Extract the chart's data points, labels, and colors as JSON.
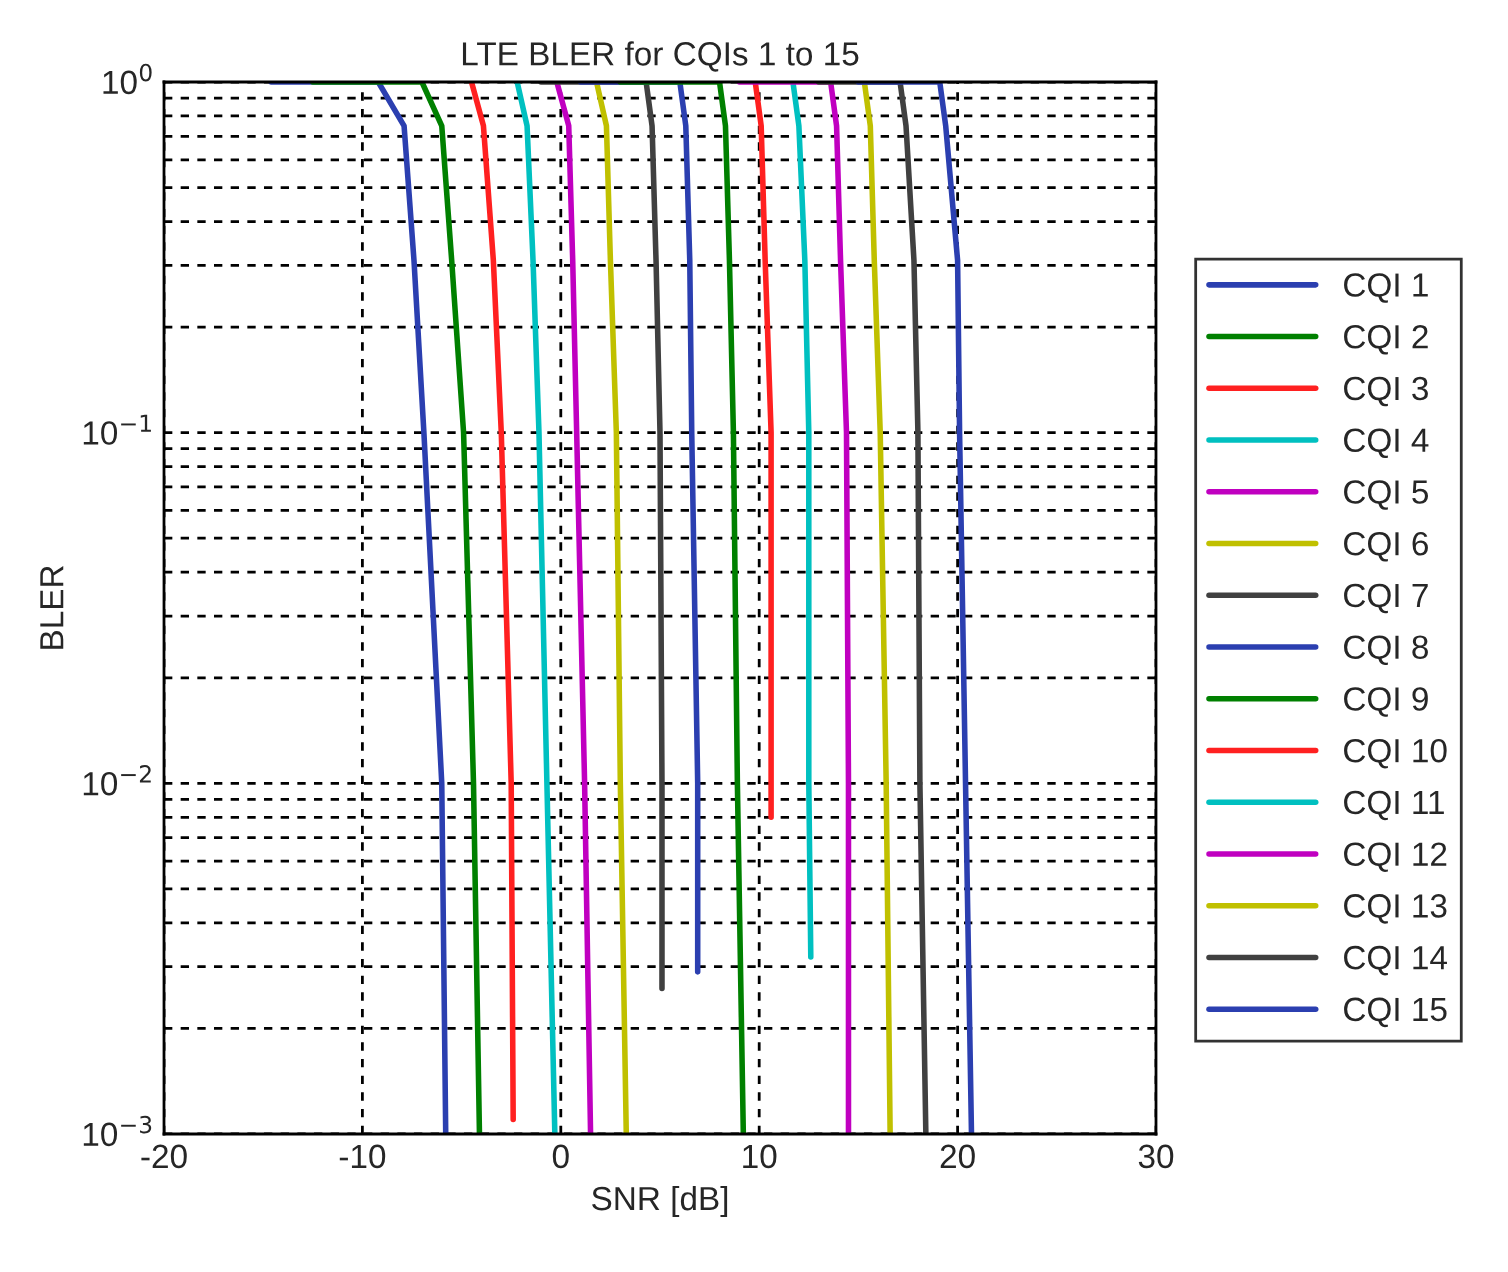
{
  "chart_data": {
    "type": "line",
    "title": "LTE BLER for CQIs 1 to 15",
    "xlabel": "SNR [dB]",
    "ylabel": "BLER",
    "log": "y",
    "xlim": [
      -20,
      30
    ],
    "xticks": [
      -20,
      -10,
      0,
      10,
      20,
      30
    ],
    "ylim": [
      0.001,
      1
    ],
    "yticks": [
      {
        "value": 0.001,
        "label": "10$^{−3}$"
      },
      {
        "value": 0.01,
        "label": "10$^{−2}$"
      },
      {
        "value": 0.1,
        "label": "10$^{−1}$"
      },
      {
        "value": 1,
        "label": "10$^{0}$"
      }
    ],
    "grid": true,
    "legend": "right",
    "marker": "none",
    "line_style": "solid",
    "series": [
      {
        "name": "CQI 1",
        "color": "#2b3fb0",
        "x": [
          -14.6,
          -9.2,
          -7.9,
          -7.4,
          -6.9,
          -6.0,
          -5.8
        ],
        "values": [
          1,
          1,
          0.75,
          0.31,
          0.1,
          0.01,
          0.001
        ]
      },
      {
        "name": "CQI 2",
        "color": "#008000",
        "x": [
          -12.5,
          -7.0,
          -6.0,
          -5.5,
          -4.9,
          -4.4,
          -4.1
        ],
        "values": [
          1,
          1,
          0.75,
          0.31,
          0.1,
          0.01,
          0.001
        ]
      },
      {
        "name": "CQI 3",
        "color": "#ff2020",
        "x": [
          -4.5,
          -3.9,
          -3.4,
          -3.0,
          -2.5,
          -2.4
        ],
        "values": [
          1,
          0.75,
          0.31,
          0.1,
          0.01,
          0.0011
        ]
      },
      {
        "name": "CQI 4",
        "color": "#00c0c0",
        "x": [
          -2.2,
          -1.7,
          -1.4,
          -1.1,
          -0.7,
          -0.3
        ],
        "values": [
          1,
          0.75,
          0.31,
          0.1,
          0.01,
          0.001
        ]
      },
      {
        "name": "CQI 5",
        "color": "#c000c0",
        "x": [
          -0.2,
          0.4,
          0.6,
          0.8,
          1.2,
          1.5
        ],
        "values": [
          1,
          0.75,
          0.31,
          0.1,
          0.01,
          0.001
        ]
      },
      {
        "name": "CQI 6",
        "color": "#c0c000",
        "x": [
          1.8,
          2.3,
          2.5,
          2.8,
          3.0,
          3.3
        ],
        "values": [
          1,
          0.75,
          0.31,
          0.1,
          0.01,
          0.001
        ]
      },
      {
        "name": "CQI 7",
        "color": "#404040",
        "x": [
          -1,
          4.3,
          4.6,
          4.8,
          5.0,
          5.1,
          5.1
        ],
        "values": [
          1,
          1,
          0.75,
          0.31,
          0.1,
          0.01,
          0.0026
        ]
      },
      {
        "name": "CQI 8",
        "color": "#2b3fb0",
        "x": [
          1,
          6.0,
          6.3,
          6.5,
          6.6,
          6.9,
          6.9
        ],
        "values": [
          1,
          1,
          0.75,
          0.31,
          0.1,
          0.01,
          0.0029
        ]
      },
      {
        "name": "CQI 9",
        "color": "#008000",
        "x": [
          3,
          8.0,
          8.3,
          8.5,
          8.7,
          8.9,
          9.2
        ],
        "values": [
          1,
          1,
          0.75,
          0.31,
          0.1,
          0.01,
          0.001
        ]
      },
      {
        "name": "CQI 10",
        "color": "#ff2020",
        "x": [
          9.8,
          10.1,
          10.3,
          10.6,
          10.6
        ],
        "values": [
          1,
          0.75,
          0.31,
          0.1,
          0.008
        ]
      },
      {
        "name": "CQI 11",
        "color": "#00c0c0",
        "x": [
          11.7,
          12.0,
          12.3,
          12.5,
          12.5,
          12.6
        ],
        "values": [
          1,
          0.75,
          0.31,
          0.1,
          0.01,
          0.0032
        ]
      },
      {
        "name": "CQI 12",
        "color": "#c000c0",
        "x": [
          9,
          13.6,
          13.9,
          14.1,
          14.4,
          14.5,
          14.5
        ],
        "values": [
          1,
          1,
          0.75,
          0.31,
          0.1,
          0.01,
          0.001
        ]
      },
      {
        "name": "CQI 13",
        "color": "#c0c000",
        "x": [
          15.3,
          15.6,
          15.8,
          16.1,
          16.4,
          16.6
        ],
        "values": [
          1,
          0.75,
          0.31,
          0.1,
          0.01,
          0.001
        ]
      },
      {
        "name": "CQI 14",
        "color": "#404040",
        "x": [
          13,
          17.1,
          17.4,
          17.8,
          18.0,
          18.1,
          18.4
        ],
        "values": [
          1,
          1,
          0.75,
          0.31,
          0.1,
          0.01,
          0.001
        ]
      },
      {
        "name": "CQI 15",
        "color": "#2b3fb0",
        "x": [
          15,
          19.1,
          19.4,
          20.0,
          20.1,
          20.4,
          20.7
        ],
        "values": [
          1,
          1,
          0.75,
          0.31,
          0.1,
          0.01,
          0.001
        ]
      }
    ]
  }
}
